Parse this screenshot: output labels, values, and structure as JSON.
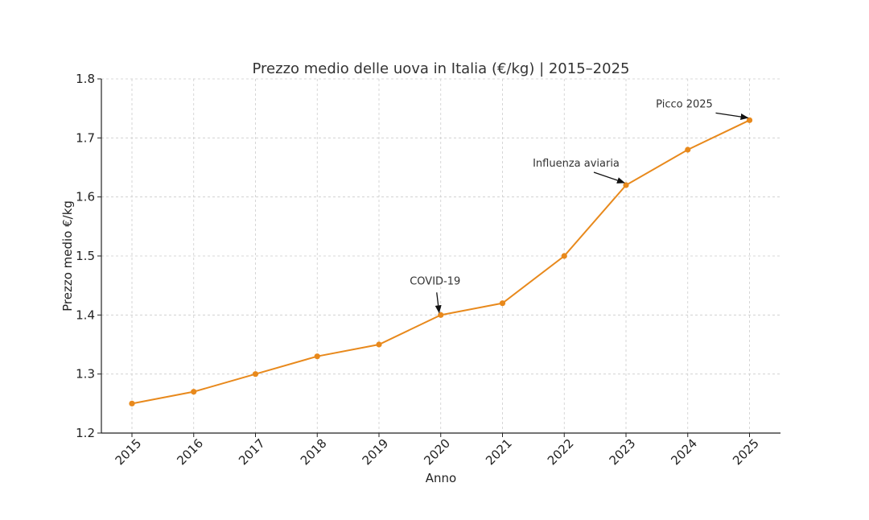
{
  "chart_data": {
    "type": "line",
    "title": "Prezzo medio delle uova in Italia (€/kg) | 2015–2025",
    "xlabel": "Anno",
    "ylabel": "Prezzo medio €/kg",
    "x": [
      "2015",
      "2016",
      "2017",
      "2018",
      "2019",
      "2020",
      "2021",
      "2022",
      "2023",
      "2024",
      "2025"
    ],
    "series": [
      {
        "values": [
          1.25,
          1.27,
          1.3,
          1.33,
          1.35,
          1.4,
          1.42,
          1.5,
          1.62,
          1.68,
          1.73
        ]
      }
    ],
    "ylim": [
      1.2,
      1.8
    ],
    "yticks": [
      "1.2",
      "1.3",
      "1.4",
      "1.5",
      "1.6",
      "1.7",
      "1.8"
    ],
    "grid": true,
    "line_color": "#e8891c",
    "annotations": [
      {
        "text": "COVID-19",
        "x": "2020",
        "y": 1.4
      },
      {
        "text": "Influenza aviaria",
        "x": "2023",
        "y": 1.62
      },
      {
        "text": "Picco 2025",
        "x": "2025",
        "y": 1.73
      }
    ]
  }
}
